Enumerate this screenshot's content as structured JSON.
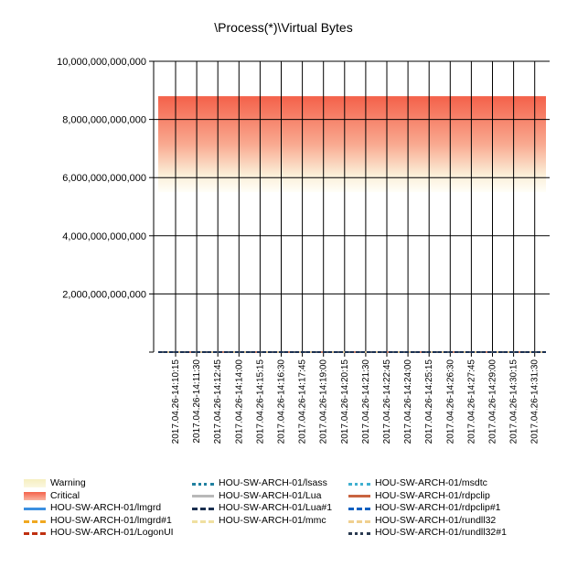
{
  "chart_data": {
    "type": "area",
    "title": "\\Process(*)\\Virtual Bytes",
    "xlabel": "",
    "ylabel": "",
    "ylim": [
      0,
      10000000000000
    ],
    "y_ticks": [
      "10,000,000,000,000",
      "8,000,000,000,000",
      "6,000,000,000,000",
      "4,000,000,000,000",
      "2,000,000,000,000",
      ""
    ],
    "y_tick_values": [
      10000000000000,
      8000000000000,
      6000000000000,
      4000000000000,
      2000000000000,
      0
    ],
    "x_ticks": [
      "2017.04.26-14:10:15",
      "2017.04.26-14:11:30",
      "2017.04.26-14:12:45",
      "2017.04.26-14:14:00",
      "2017.04.26-14:15:15",
      "2017.04.26-14:16:30",
      "2017.04.26-14:17:45",
      "2017.04.26-14:19:00",
      "2017.04.26-14:20:15",
      "2017.04.26-14:21:30",
      "2017.04.26-14:22:45",
      "2017.04.26-14:24:00",
      "2017.04.26-14:25:15",
      "2017.04.26-14:26:30",
      "2017.04.26-14:27:45",
      "2017.04.26-14:29:00",
      "2017.04.26-14:30:15",
      "2017.04.26-14:31:30"
    ],
    "grid": true,
    "legend_position": "bottom",
    "bands": [
      {
        "name": "Warning",
        "from": 5500000000000,
        "to": 6500000000000,
        "color": "#f5eec0"
      },
      {
        "name": "Critical",
        "from": 5500000000000,
        "to": 8800000000000,
        "color": "#f4614a"
      }
    ],
    "series": [
      {
        "name": "HOU-SW-ARCH-01/lmgrd",
        "value": 0,
        "color": "#3c8fe0",
        "dash": "solid"
      },
      {
        "name": "HOU-SW-ARCH-01/lmgrd#1",
        "value": 0,
        "color": "#f0a820",
        "dash": "dashed"
      },
      {
        "name": "HOU-SW-ARCH-01/LogonUI",
        "value": 0,
        "color": "#c03010",
        "dash": "dashed"
      },
      {
        "name": "HOU-SW-ARCH-01/lsass",
        "value": 0,
        "color": "#2080a0",
        "dash": "dotted"
      },
      {
        "name": "HOU-SW-ARCH-01/Lua",
        "value": 0,
        "color": "#b8b8b8",
        "dash": "solid"
      },
      {
        "name": "HOU-SW-ARCH-01/Lua#1",
        "value": 0,
        "color": "#1a2f50",
        "dash": "dashed"
      },
      {
        "name": "HOU-SW-ARCH-01/mmc",
        "value": 0,
        "color": "#f0e0a0",
        "dash": "dashed"
      },
      {
        "name": "HOU-SW-ARCH-01/msdtc",
        "value": 0,
        "color": "#40b0d0",
        "dash": "dotted"
      },
      {
        "name": "HOU-SW-ARCH-01/rdpclip",
        "value": 0,
        "color": "#c86440",
        "dash": "solid"
      },
      {
        "name": "HOU-SW-ARCH-01/rdpclip#1",
        "value": 0,
        "color": "#1060c0",
        "dash": "dashed"
      },
      {
        "name": "HOU-SW-ARCH-01/rundll32",
        "value": 0,
        "color": "#f0d090",
        "dash": "dashed"
      },
      {
        "name": "HOU-SW-ARCH-01/rundll32#1",
        "value": 0,
        "color": "#2a3a50",
        "dash": "dotted"
      }
    ]
  }
}
